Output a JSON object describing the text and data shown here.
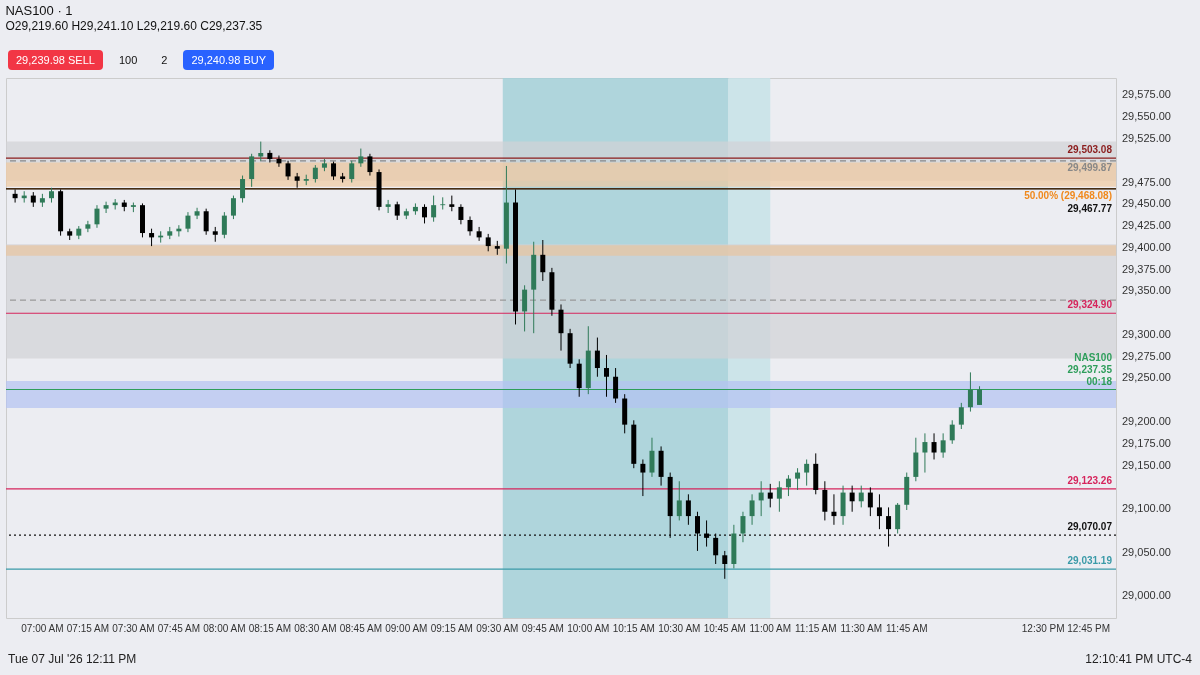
{
  "chart_data": {
    "type": "candlestick",
    "title": "NAS100 · 1",
    "subtitle": "O29,219.60 H29,241.10 L29,219.60 C29,237.35",
    "x": [
      6.85,
      6.9,
      6.95,
      7.0,
      7.05,
      7.1,
      7.15,
      7.2,
      7.25,
      7.3,
      7.35,
      7.4,
      7.45,
      7.5,
      7.55,
      7.6,
      7.65,
      7.7,
      7.75,
      7.8,
      7.85,
      7.9,
      7.95,
      8.0,
      8.05,
      8.1,
      8.15,
      8.2,
      8.25,
      8.3,
      8.35,
      8.4,
      8.45,
      8.5,
      8.55,
      8.6,
      8.65,
      8.7,
      8.75,
      8.8,
      8.85,
      8.9,
      8.95,
      9.0,
      9.05,
      9.1,
      9.15,
      9.2,
      9.25,
      9.3,
      9.35,
      9.4,
      9.45,
      9.5,
      9.55,
      9.6,
      9.65,
      9.7,
      9.75,
      9.8,
      9.85,
      9.9,
      9.95,
      10.0,
      10.05,
      10.1,
      10.15,
      10.2,
      10.25,
      10.3,
      10.35,
      10.4,
      10.45,
      10.5,
      10.55,
      10.6,
      10.65,
      10.7,
      10.75,
      10.8,
      10.85,
      10.9,
      10.95,
      11.0,
      11.05,
      11.1,
      11.15,
      11.2,
      11.25,
      11.3,
      11.35,
      11.4,
      11.45,
      11.5,
      11.55,
      11.6,
      11.65,
      11.7,
      11.75,
      11.8,
      11.85,
      11.9,
      11.95,
      12.0,
      12.05,
      12.1,
      12.15
    ],
    "ohlc": [
      [
        29462,
        29467,
        29452,
        29457
      ],
      [
        29457,
        29465,
        29452,
        29460
      ],
      [
        29460,
        29464,
        29447,
        29452
      ],
      [
        29452,
        29462,
        29447,
        29457
      ],
      [
        29457,
        29469,
        29452,
        29465
      ],
      [
        29465,
        29467,
        29414,
        29419
      ],
      [
        29419,
        29422,
        29409,
        29414
      ],
      [
        29414,
        29425,
        29410,
        29422
      ],
      [
        29422,
        29431,
        29418,
        29427
      ],
      [
        29427,
        29449,
        29423,
        29445
      ],
      [
        29445,
        29453,
        29440,
        29449
      ],
      [
        29449,
        29456,
        29444,
        29452
      ],
      [
        29452,
        29455,
        29442,
        29447
      ],
      [
        29447,
        29452,
        29441,
        29449
      ],
      [
        29449,
        29451,
        29412,
        29417
      ],
      [
        29417,
        29422,
        29402,
        29412
      ],
      [
        29412,
        29419,
        29406,
        29414
      ],
      [
        29414,
        29424,
        29410,
        29419
      ],
      [
        29419,
        29426,
        29413,
        29422
      ],
      [
        29422,
        29441,
        29418,
        29437
      ],
      [
        29437,
        29446,
        29433,
        29442
      ],
      [
        29442,
        29445,
        29415,
        29419
      ],
      [
        29419,
        29424,
        29407,
        29415
      ],
      [
        29415,
        29441,
        29411,
        29437
      ],
      [
        29437,
        29460,
        29433,
        29457
      ],
      [
        29457,
        29483,
        29452,
        29479
      ],
      [
        29479,
        29508,
        29470,
        29505
      ],
      [
        29505,
        29522,
        29500,
        29509
      ],
      [
        29509,
        29512,
        29498,
        29502
      ],
      [
        29502,
        29506,
        29493,
        29497
      ],
      [
        29497,
        29500,
        29478,
        29482
      ],
      [
        29482,
        29486,
        29469,
        29477
      ],
      [
        29477,
        29484,
        29472,
        29479
      ],
      [
        29479,
        29495,
        29475,
        29492
      ],
      [
        29492,
        29502,
        29488,
        29497
      ],
      [
        29497,
        29499,
        29478,
        29482
      ],
      [
        29482,
        29486,
        29475,
        29479
      ],
      [
        29479,
        29500,
        29475,
        29497
      ],
      [
        29497,
        29514,
        29493,
        29505
      ],
      [
        29505,
        29508,
        29483,
        29487
      ],
      [
        29487,
        29490,
        29443,
        29447
      ],
      [
        29447,
        29455,
        29440,
        29450
      ],
      [
        29450,
        29453,
        29432,
        29437
      ],
      [
        29437,
        29445,
        29433,
        29442
      ],
      [
        29442,
        29451,
        29438,
        29447
      ],
      [
        29447,
        29450,
        29428,
        29435
      ],
      [
        29435,
        29460,
        29430,
        29449
      ],
      [
        29449,
        29458,
        29444,
        29450
      ],
      [
        29450,
        29460,
        29442,
        29447
      ],
      [
        29447,
        29450,
        29427,
        29432
      ],
      [
        29432,
        29436,
        29414,
        29419
      ],
      [
        29419,
        29424,
        29408,
        29412
      ],
      [
        29412,
        29416,
        29396,
        29402
      ],
      [
        29402,
        29408,
        29392,
        29399
      ],
      [
        29399,
        29494,
        29382,
        29452
      ],
      [
        29452,
        29467,
        29312,
        29327
      ],
      [
        29327,
        29357,
        29304,
        29352
      ],
      [
        29352,
        29407,
        29302,
        29392
      ],
      [
        29392,
        29409,
        29362,
        29372
      ],
      [
        29372,
        29377,
        29322,
        29329
      ],
      [
        29329,
        29335,
        29282,
        29302
      ],
      [
        29302,
        29307,
        29262,
        29267
      ],
      [
        29267,
        29272,
        29229,
        29239
      ],
      [
        29239,
        29310,
        29232,
        29282
      ],
      [
        29282,
        29297,
        29252,
        29262
      ],
      [
        29262,
        29277,
        29229,
        29252
      ],
      [
        29252,
        29262,
        29222,
        29227
      ],
      [
        29227,
        29232,
        29187,
        29197
      ],
      [
        29197,
        29202,
        29147,
        29152
      ],
      [
        29152,
        29157,
        29115,
        29142
      ],
      [
        29142,
        29182,
        29137,
        29167
      ],
      [
        29167,
        29172,
        29127,
        29137
      ],
      [
        29137,
        29142,
        29067,
        29092
      ],
      [
        29092,
        29132,
        29087,
        29110
      ],
      [
        29110,
        29117,
        29082,
        29092
      ],
      [
        29092,
        29097,
        29052,
        29072
      ],
      [
        29072,
        29087,
        29057,
        29067
      ],
      [
        29067,
        29072,
        29037,
        29047
      ],
      [
        29047,
        29052,
        29020,
        29037
      ],
      [
        29037,
        29082,
        29032,
        29072
      ],
      [
        29072,
        29097,
        29062,
        29092
      ],
      [
        29092,
        29117,
        29082,
        29110
      ],
      [
        29110,
        29132,
        29092,
        29119
      ],
      [
        29119,
        29129,
        29102,
        29112
      ],
      [
        29112,
        29132,
        29097,
        29125
      ],
      [
        29125,
        29139,
        29115,
        29135
      ],
      [
        29135,
        29147,
        29122,
        29142
      ],
      [
        29142,
        29157,
        29127,
        29152
      ],
      [
        29152,
        29164,
        29117,
        29122
      ],
      [
        29122,
        29132,
        29087,
        29097
      ],
      [
        29097,
        29117,
        29082,
        29092
      ],
      [
        29092,
        29127,
        29082,
        29119
      ],
      [
        29119,
        29127,
        29097,
        29109
      ],
      [
        29109,
        29127,
        29102,
        29119
      ],
      [
        29119,
        29125,
        29092,
        29102
      ],
      [
        29102,
        29117,
        29077,
        29092
      ],
      [
        29092,
        29102,
        29057,
        29077
      ],
      [
        29077,
        29107,
        29072,
        29105
      ],
      [
        29105,
        29142,
        29099,
        29137
      ],
      [
        29137,
        29182,
        29132,
        29165
      ],
      [
        29165,
        29187,
        29142,
        29177
      ],
      [
        29177,
        29187,
        29157,
        29165
      ],
      [
        29165,
        29187,
        29159,
        29179
      ],
      [
        29179,
        29202,
        29175,
        29197
      ],
      [
        29197,
        29222,
        29192,
        29217
      ],
      [
        29217,
        29257,
        29212,
        29237
      ],
      [
        29219.6,
        29241.1,
        29219.6,
        29237.35
      ]
    ],
    "xlim": [
      6.8,
      12.9
    ],
    "xticks": [
      {
        "value": 7,
        "label": "07:00 AM"
      },
      {
        "value": 7.25,
        "label": "07:15 AM"
      },
      {
        "value": 7.5,
        "label": "07:30 AM"
      },
      {
        "value": 7.75,
        "label": "07:45 AM"
      },
      {
        "value": 8,
        "label": "08:00 AM"
      },
      {
        "value": 8.25,
        "label": "08:15 AM"
      },
      {
        "value": 8.5,
        "label": "08:30 AM"
      },
      {
        "value": 8.75,
        "label": "08:45 AM"
      },
      {
        "value": 9,
        "label": "09:00 AM"
      },
      {
        "value": 9.25,
        "label": "09:15 AM"
      },
      {
        "value": 9.5,
        "label": "09:30 AM"
      },
      {
        "value": 9.75,
        "label": "09:45 AM"
      },
      {
        "value": 10,
        "label": "10:00 AM"
      },
      {
        "value": 10.25,
        "label": "10:15 AM"
      },
      {
        "value": 10.5,
        "label": "10:30 AM"
      },
      {
        "value": 10.75,
        "label": "10:45 AM"
      },
      {
        "value": 11,
        "label": "11:00 AM"
      },
      {
        "value": 11.25,
        "label": "11:15 AM"
      },
      {
        "value": 11.5,
        "label": "11:30 AM"
      },
      {
        "value": 11.75,
        "label": "11:45 AM"
      },
      {
        "value": 12.5,
        "label": "12:30 PM"
      },
      {
        "value": 12.75,
        "label": "12:45 PM"
      }
    ],
    "ylim": [
      28975,
      29595
    ],
    "yticks": [
      {
        "value": 29000,
        "label": "29,000.00"
      },
      {
        "value": 29050,
        "label": "29,050.00"
      },
      {
        "value": 29100,
        "label": "29,100.00"
      },
      {
        "value": 29150,
        "label": "29,150.00"
      },
      {
        "value": 29175,
        "label": "29,175.00"
      },
      {
        "value": 29200,
        "label": "29,200.00"
      },
      {
        "value": 29250,
        "label": "29,250.00"
      },
      {
        "value": 29275,
        "label": "29,275.00"
      },
      {
        "value": 29300,
        "label": "29,300.00"
      },
      {
        "value": 29350,
        "label": "29,350.00"
      },
      {
        "value": 29375,
        "label": "29,375.00"
      },
      {
        "value": 29400,
        "label": "29,400.00"
      },
      {
        "value": 29425,
        "label": "29,425.00"
      },
      {
        "value": 29450,
        "label": "29,450.00"
      },
      {
        "value": 29475,
        "label": "29,475.00"
      },
      {
        "value": 29525,
        "label": "29,525.00"
      },
      {
        "value": 29550,
        "label": "29,550.00"
      },
      {
        "value": 29575,
        "label": "29,575.00"
      }
    ],
    "bands": [
      {
        "axis": "y",
        "from": 29477,
        "to": 29522,
        "color": "#d1d1d6"
      },
      {
        "axis": "y",
        "from": 29273,
        "to": 29404,
        "color": "#d1d1d6"
      },
      {
        "axis": "y",
        "from": 29216,
        "to": 29247,
        "color": "#b3c2f2"
      },
      {
        "axis": "y",
        "from": 29470,
        "to": 29498,
        "color": "#f0c9a0"
      },
      {
        "axis": "y",
        "from": 29391,
        "to": 29403,
        "color": "#e8c4a0"
      },
      {
        "axis": "x",
        "from": 9.53,
        "to": 10.77,
        "color": "#a4d0d8"
      },
      {
        "axis": "x",
        "from": 10.77,
        "to": 11.0,
        "color": "#c7e2e8"
      }
    ],
    "ref_lines": [
      {
        "axis": "y",
        "value": 29503.08,
        "label": "29,503.08",
        "color": "#8b1c1c"
      },
      {
        "axis": "y",
        "value": 29499.87,
        "label": "29,499.87",
        "color": "#888888",
        "line_style": "dashed"
      },
      {
        "axis": "y",
        "value": 29468.08,
        "label": "50.00% (29,468.08)",
        "color": "#f0891c"
      },
      {
        "axis": "y",
        "value": 29467.77,
        "label": "29,467.77",
        "color": "#111111"
      },
      {
        "axis": "y",
        "value": 29340,
        "color": "#999999",
        "line_style": "dashed"
      },
      {
        "axis": "y",
        "value": 29324.9,
        "label": "29,324.90",
        "color": "#d6245c"
      },
      {
        "axis": "y",
        "value": 29237.35,
        "label": "NAS100 29,237.35 00:18",
        "color": "#2e9e5b"
      },
      {
        "axis": "y",
        "value": 29123.26,
        "label": "29,123.26",
        "color": "#d6245c"
      },
      {
        "axis": "y",
        "value": 29070.07,
        "label": "29,070.07",
        "color": "#111111",
        "line_style": "dotted"
      },
      {
        "axis": "y",
        "value": 29031.19,
        "label": "29,031.19",
        "color": "#3a9aa8"
      }
    ],
    "annotations": [
      "29,239.98 SELL",
      "100",
      "2",
      "29,240.98 BUY",
      "Tue 07 Jul '26   12:11 PM",
      "12:10:41 PM UTC-4"
    ]
  }
}
